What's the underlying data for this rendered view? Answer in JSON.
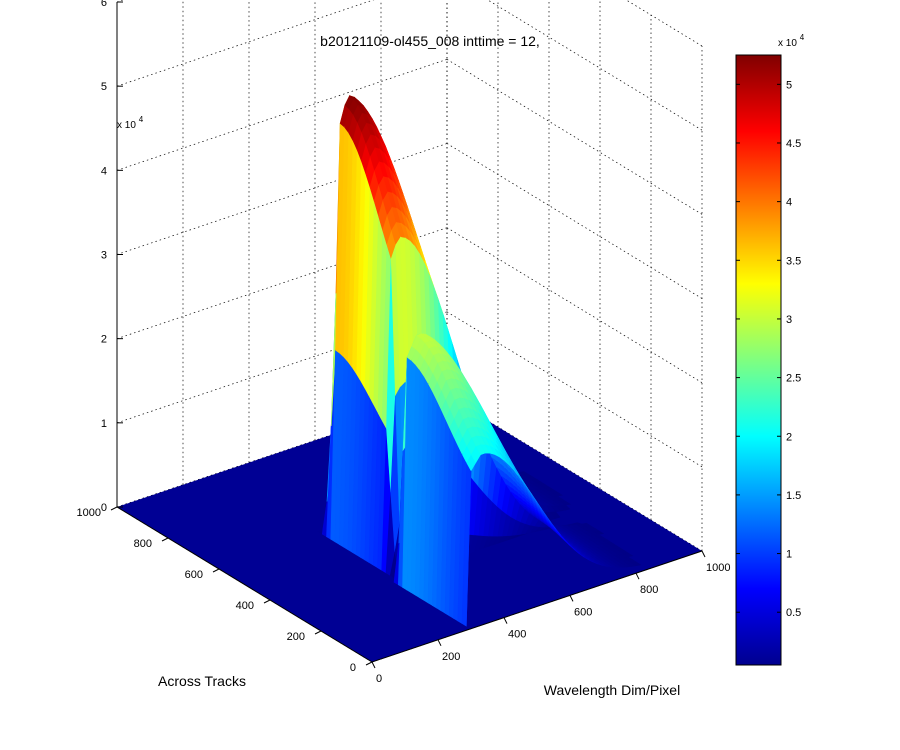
{
  "chart_data": {
    "type": "surface",
    "title": "b20121109-ol455_008 inttime = 12,",
    "xlabel": "Wavelength Dim/Pixel",
    "ylabel": "Across Tracks",
    "zlabel": "",
    "x_range": [
      0,
      1000
    ],
    "y_range": [
      0,
      1000
    ],
    "z_range": [
      0,
      60000
    ],
    "x_ticks": [
      "0",
      "200",
      "400",
      "600",
      "800",
      "1000"
    ],
    "y_ticks": [
      "0",
      "200",
      "400",
      "600",
      "800",
      "1000"
    ],
    "z_ticks": [
      "0",
      "1",
      "2",
      "3",
      "4",
      "5",
      "6"
    ],
    "z_multiplier": "x 10",
    "z_exponent": "4",
    "grid": true,
    "colormap": "jet",
    "colorbar": {
      "range": [
        500,
        52500
      ],
      "ticks": [
        "0.5",
        "1",
        "1.5",
        "2",
        "2.5",
        "3",
        "3.5",
        "4",
        "4.5",
        "5"
      ],
      "tick_values": [
        5000,
        10000,
        15000,
        20000,
        25000,
        30000,
        35000,
        40000,
        45000,
        50000
      ],
      "multiplier": "x 10",
      "exponent": "4"
    },
    "surface": {
      "description_values": {
        "bands": [
          {
            "across_track_range": [
              350,
              550
            ],
            "wavelength_peak": 350,
            "peak_value": 52500
          },
          {
            "across_track_range": [
              0,
              250
            ],
            "wavelength_peak": 330,
            "peak_value": 30000
          }
        ],
        "background_value": 500
      }
    }
  }
}
